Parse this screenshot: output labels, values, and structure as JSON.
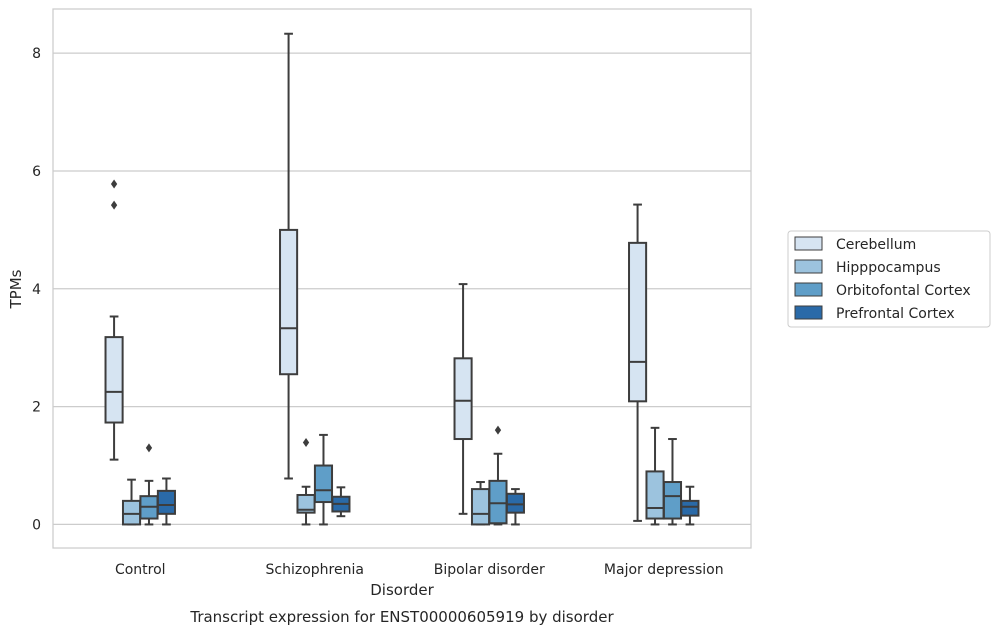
{
  "caption": "Transcript expression for ENST00000605919 by disorder",
  "chart_data": {
    "type": "box",
    "xlabel": "Disorder",
    "ylabel": "TPMs",
    "ylim": [
      -0.4,
      8.75
    ],
    "yticks": [
      0,
      2,
      4,
      6,
      8
    ],
    "grid": "horizontal",
    "legend_position": "center-right outside",
    "categories": [
      "Control",
      "Schizophrenia",
      "Bipolar disorder",
      "Major depression"
    ],
    "series": [
      {
        "name": "Cerebellum",
        "color": "#d6e4f2",
        "boxes": [
          {
            "category": "Control",
            "whisker_low": 1.1,
            "q1": 1.73,
            "median": 2.25,
            "q3": 3.18,
            "whisker_high": 3.53,
            "outliers": [
              5.42,
              5.78
            ]
          },
          {
            "category": "Schizophrenia",
            "whisker_low": 0.78,
            "q1": 2.55,
            "median": 3.33,
            "q3": 5.0,
            "whisker_high": 8.33,
            "outliers": []
          },
          {
            "category": "Bipolar disorder",
            "whisker_low": 0.18,
            "q1": 1.45,
            "median": 2.1,
            "q3": 2.82,
            "whisker_high": 4.08,
            "outliers": []
          },
          {
            "category": "Major depression",
            "whisker_low": 0.06,
            "q1": 2.09,
            "median": 2.76,
            "q3": 4.78,
            "whisker_high": 5.43,
            "outliers": []
          }
        ]
      },
      {
        "name": "Hipppocampus",
        "color": "#9cc3de",
        "boxes": [
          {
            "category": "Control",
            "whisker_low": 0.0,
            "q1": 0.0,
            "median": 0.18,
            "q3": 0.4,
            "whisker_high": 0.76,
            "outliers": []
          },
          {
            "category": "Schizophrenia",
            "whisker_low": 0.0,
            "q1": 0.2,
            "median": 0.25,
            "q3": 0.5,
            "whisker_high": 0.64,
            "outliers": [
              1.39
            ]
          },
          {
            "category": "Bipolar disorder",
            "whisker_low": 0.0,
            "q1": 0.0,
            "median": 0.18,
            "q3": 0.6,
            "whisker_high": 0.72,
            "outliers": []
          },
          {
            "category": "Major depression",
            "whisker_low": 0.0,
            "q1": 0.1,
            "median": 0.28,
            "q3": 0.9,
            "whisker_high": 1.64,
            "outliers": []
          }
        ]
      },
      {
        "name": "Orbitofontal Cortex",
        "color": "#5f9ec8",
        "boxes": [
          {
            "category": "Control",
            "whisker_low": 0.0,
            "q1": 0.1,
            "median": 0.3,
            "q3": 0.48,
            "whisker_high": 0.74,
            "outliers": [
              1.3
            ]
          },
          {
            "category": "Schizophrenia",
            "whisker_low": 0.0,
            "q1": 0.38,
            "median": 0.58,
            "q3": 1.0,
            "whisker_high": 1.52,
            "outliers": []
          },
          {
            "category": "Bipolar disorder",
            "whisker_low": 0.0,
            "q1": 0.02,
            "median": 0.36,
            "q3": 0.74,
            "whisker_high": 1.2,
            "outliers": [
              1.6
            ]
          },
          {
            "category": "Major depression",
            "whisker_low": 0.0,
            "q1": 0.1,
            "median": 0.48,
            "q3": 0.72,
            "whisker_high": 1.45,
            "outliers": []
          }
        ]
      },
      {
        "name": "Prefrontal Cortex",
        "color": "#2a6aa8",
        "boxes": [
          {
            "category": "Control",
            "whisker_low": 0.0,
            "q1": 0.18,
            "median": 0.33,
            "q3": 0.57,
            "whisker_high": 0.78,
            "outliers": []
          },
          {
            "category": "Schizophrenia",
            "whisker_low": 0.14,
            "q1": 0.22,
            "median": 0.35,
            "q3": 0.47,
            "whisker_high": 0.63,
            "outliers": []
          },
          {
            "category": "Bipolar disorder",
            "whisker_low": 0.0,
            "q1": 0.2,
            "median": 0.34,
            "q3": 0.52,
            "whisker_high": 0.6,
            "outliers": []
          },
          {
            "category": "Major depression",
            "whisker_low": 0.0,
            "q1": 0.15,
            "median": 0.3,
            "q3": 0.4,
            "whisker_high": 0.64,
            "outliers": []
          }
        ]
      }
    ]
  }
}
